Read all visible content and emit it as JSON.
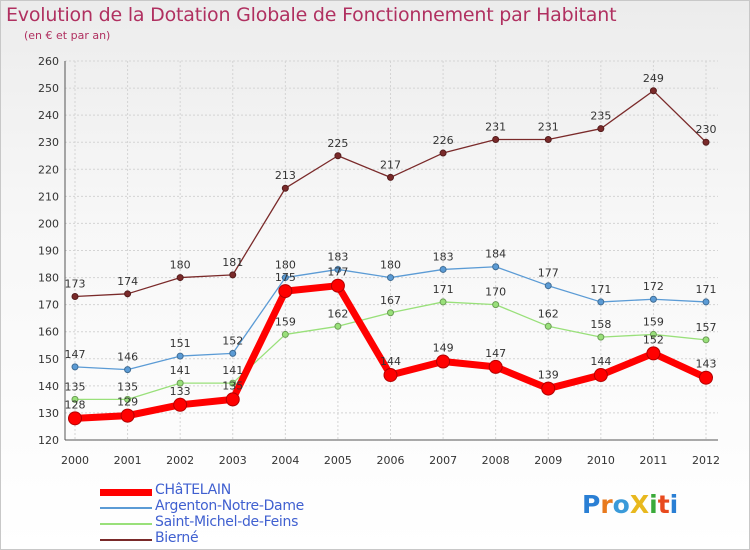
{
  "title": "Evolution de la Dotation Globale de Fonctionnement par Habitant",
  "subtitle": "(en € et par an)",
  "logo": {
    "text": "ProXiti",
    "colors": [
      "#2a7fd4",
      "#e87a1e",
      "#3a9ad9",
      "#e8b81e",
      "#3aaa3a",
      "#e84a1e",
      "#2a7fd4"
    ]
  },
  "chart_data": {
    "type": "line",
    "title": "Evolution de la Dotation Globale de Fonctionnement par Habitant",
    "subtitle": "(en € et par an)",
    "xlabel": "",
    "ylabel": "",
    "ylim": [
      120,
      260
    ],
    "yticks": [
      120,
      130,
      140,
      150,
      160,
      170,
      180,
      190,
      200,
      210,
      220,
      230,
      240,
      250,
      260
    ],
    "grid": true,
    "legend_position": "bottom-left",
    "categories": [
      "2000",
      "2001",
      "2002",
      "2003",
      "2004",
      "2005",
      "2006",
      "2007",
      "2008",
      "2009",
      "2010",
      "2011",
      "2012"
    ],
    "series": [
      {
        "name": "CHâTELAIN",
        "color": "#ff0000",
        "values": [
          128,
          129,
          133,
          135,
          175,
          177,
          144,
          149,
          147,
          139,
          144,
          152,
          143
        ],
        "labels": [
          "128",
          "129",
          "133",
          "135",
          "175",
          "177",
          "144",
          "149",
          "147",
          "139",
          "144",
          "152",
          "143"
        ]
      },
      {
        "name": "Argenton-Notre-Dame",
        "color": "#5b9bd5",
        "values": [
          147,
          146,
          151,
          152,
          180,
          183,
          180,
          183,
          184,
          177,
          171,
          172,
          171
        ],
        "labels": [
          "147",
          "146",
          "151",
          "152",
          "180",
          "183",
          "180",
          "183",
          "184",
          "177",
          "171",
          "172",
          "171"
        ]
      },
      {
        "name": "Saint-Michel-de-Feins",
        "color": "#99e07a",
        "values": [
          135,
          135,
          141,
          141,
          159,
          162,
          167,
          171,
          170,
          162,
          158,
          159,
          157
        ],
        "labels": [
          "135",
          "135",
          "141",
          "141",
          "159",
          "162",
          "167",
          "171",
          "170",
          "162",
          "158",
          "159",
          "157"
        ]
      },
      {
        "name": "Bierné",
        "color": "#7a2a2a",
        "values": [
          173,
          174,
          180,
          181,
          213,
          225,
          217,
          226,
          231,
          231,
          235,
          249,
          230
        ],
        "labels": [
          "173",
          "174",
          "180",
          "181",
          "213",
          "225",
          "217",
          "226",
          "231",
          "231",
          "235",
          "249",
          "230"
        ]
      }
    ]
  }
}
